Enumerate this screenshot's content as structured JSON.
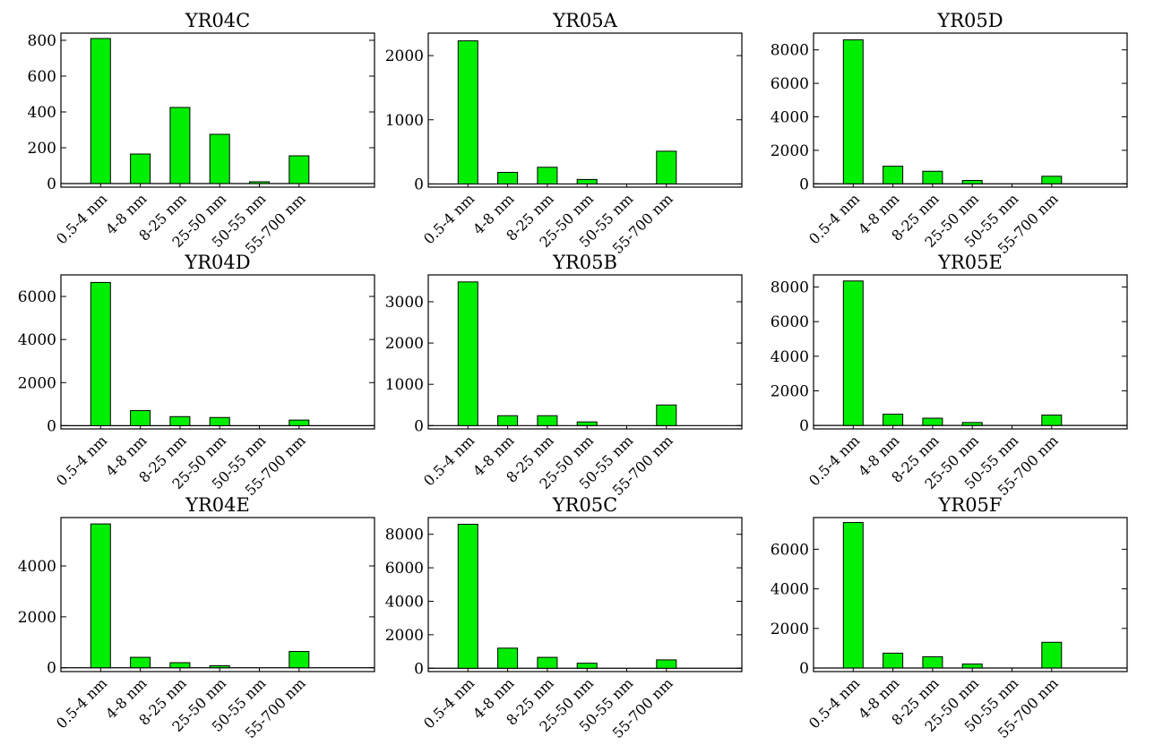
{
  "colors": {
    "bar": "#00ee00",
    "axis": "#000000"
  },
  "chart_data": [
    {
      "type": "bar",
      "title": "YR04C",
      "categories": [
        "0.5-4 nm",
        "4-8 nm",
        "8-25 nm",
        "25-50 nm",
        "50-55 nm",
        "55-700 nm"
      ],
      "values": [
        810,
        165,
        425,
        275,
        10,
        155
      ],
      "ylim": [
        -20,
        840
      ],
      "yticks": [
        0,
        200,
        400,
        600,
        800
      ],
      "ytick_labels": [
        "0",
        "200",
        "400",
        "600",
        "800"
      ],
      "grid": false
    },
    {
      "type": "bar",
      "title": "YR05A",
      "categories": [
        "0.5-4 nm",
        "4-8 nm",
        "8-25 nm",
        "25-50 nm",
        "50-55 nm",
        "55-700 nm"
      ],
      "values": [
        2230,
        180,
        260,
        70,
        0,
        510
      ],
      "ylim": [
        -50,
        2350
      ],
      "yticks": [
        0,
        1000,
        2000
      ],
      "ytick_labels": [
        "0",
        "1000",
        "2000"
      ],
      "grid": false
    },
    {
      "type": "bar",
      "title": "YR05D",
      "categories": [
        "0.5-4 nm",
        "4-8 nm",
        "8-25 nm",
        "25-50 nm",
        "50-55 nm",
        "55-700 nm"
      ],
      "values": [
        8600,
        1050,
        750,
        200,
        0,
        450
      ],
      "ylim": [
        -200,
        9000
      ],
      "yticks": [
        0,
        2000,
        4000,
        6000,
        8000
      ],
      "ytick_labels": [
        "0",
        "2000",
        "4000",
        "6000",
        "8000"
      ],
      "grid": false
    },
    {
      "type": "bar",
      "title": "YR04D",
      "categories": [
        "0.5-4 nm",
        "4-8 nm",
        "8-25 nm",
        "25-50 nm",
        "50-55 nm",
        "55-700 nm"
      ],
      "values": [
        6650,
        700,
        420,
        380,
        0,
        260
      ],
      "ylim": [
        -150,
        7000
      ],
      "yticks": [
        0,
        2000,
        4000,
        6000
      ],
      "ytick_labels": [
        "0",
        "2000",
        "4000",
        "6000"
      ],
      "grid": false
    },
    {
      "type": "bar",
      "title": "YR05B",
      "categories": [
        "0.5-4 nm",
        "4-8 nm",
        "8-25 nm",
        "25-50 nm",
        "50-55 nm",
        "55-700 nm"
      ],
      "values": [
        3480,
        240,
        240,
        90,
        0,
        500
      ],
      "ylim": [
        -80,
        3650
      ],
      "yticks": [
        0,
        1000,
        2000,
        3000
      ],
      "ytick_labels": [
        "0",
        "1000",
        "2000",
        "3000"
      ],
      "grid": false
    },
    {
      "type": "bar",
      "title": "YR05E",
      "categories": [
        "0.5-4 nm",
        "4-8 nm",
        "8-25 nm",
        "25-50 nm",
        "50-55 nm",
        "55-700 nm"
      ],
      "values": [
        8350,
        650,
        420,
        170,
        0,
        600
      ],
      "ylim": [
        -200,
        8700
      ],
      "yticks": [
        0,
        2000,
        4000,
        6000,
        8000
      ],
      "ytick_labels": [
        "0",
        "2000",
        "4000",
        "6000",
        "8000"
      ],
      "grid": false
    },
    {
      "type": "bar",
      "title": "YR04E",
      "categories": [
        "0.5-4 nm",
        "4-8 nm",
        "8-25 nm",
        "25-50 nm",
        "50-55 nm",
        "55-700 nm"
      ],
      "values": [
        5650,
        410,
        200,
        80,
        0,
        640
      ],
      "ylim": [
        -150,
        5900
      ],
      "yticks": [
        0,
        2000,
        4000
      ],
      "ytick_labels": [
        "0",
        "2000",
        "4000"
      ],
      "grid": false
    },
    {
      "type": "bar",
      "title": "YR05C",
      "categories": [
        "0.5-4 nm",
        "4-8 nm",
        "8-25 nm",
        "25-50 nm",
        "50-55 nm",
        "55-700 nm"
      ],
      "values": [
        8600,
        1200,
        650,
        300,
        0,
        500
      ],
      "ylim": [
        -200,
        9000
      ],
      "yticks": [
        0,
        2000,
        4000,
        6000,
        8000
      ],
      "ytick_labels": [
        "0",
        "2000",
        "4000",
        "6000",
        "8000"
      ],
      "grid": false
    },
    {
      "type": "bar",
      "title": "YR05F",
      "categories": [
        "0.5-4 nm",
        "4-8 nm",
        "8-25 nm",
        "25-50 nm",
        "50-55 nm",
        "55-700 nm"
      ],
      "values": [
        7350,
        750,
        570,
        200,
        0,
        1300
      ],
      "ylim": [
        -180,
        7600
      ],
      "yticks": [
        0,
        2000,
        4000,
        6000
      ],
      "ytick_labels": [
        "0",
        "2000",
        "4000",
        "6000"
      ],
      "grid": false
    }
  ]
}
